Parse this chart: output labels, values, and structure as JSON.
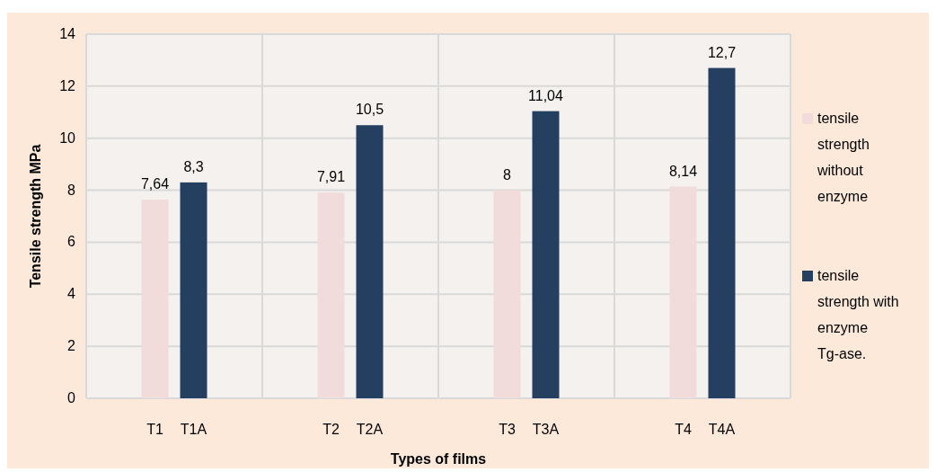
{
  "chart_data": {
    "type": "bar",
    "xlabel": "Types of films",
    "ylabel": "Tensile strength MPa",
    "categories": [
      "T1",
      "T1A",
      "T2",
      "T2A",
      "T3",
      "T3A",
      "T4",
      "T4A"
    ],
    "series": [
      {
        "name": "tensile strength without enzyme",
        "color": "#f2dcdb",
        "values": [
          7.64,
          null,
          7.91,
          null,
          8,
          null,
          8.14,
          null
        ],
        "value_labels": [
          "7,64",
          null,
          "7,91",
          null,
          "8",
          null,
          "8,14",
          null
        ]
      },
      {
        "name": "tensile strength with enzyme Tg-ase.",
        "color": "#243f60",
        "values": [
          null,
          8.3,
          null,
          10.5,
          null,
          11.04,
          null,
          12.7
        ],
        "value_labels": [
          null,
          "8,3",
          null,
          "10,5",
          null,
          "11,04",
          null,
          "12,7"
        ]
      }
    ],
    "ylim": [
      0,
      14
    ],
    "yticks": [
      0,
      2,
      4,
      6,
      8,
      10,
      12,
      14
    ],
    "grid": true,
    "legend": "right"
  }
}
